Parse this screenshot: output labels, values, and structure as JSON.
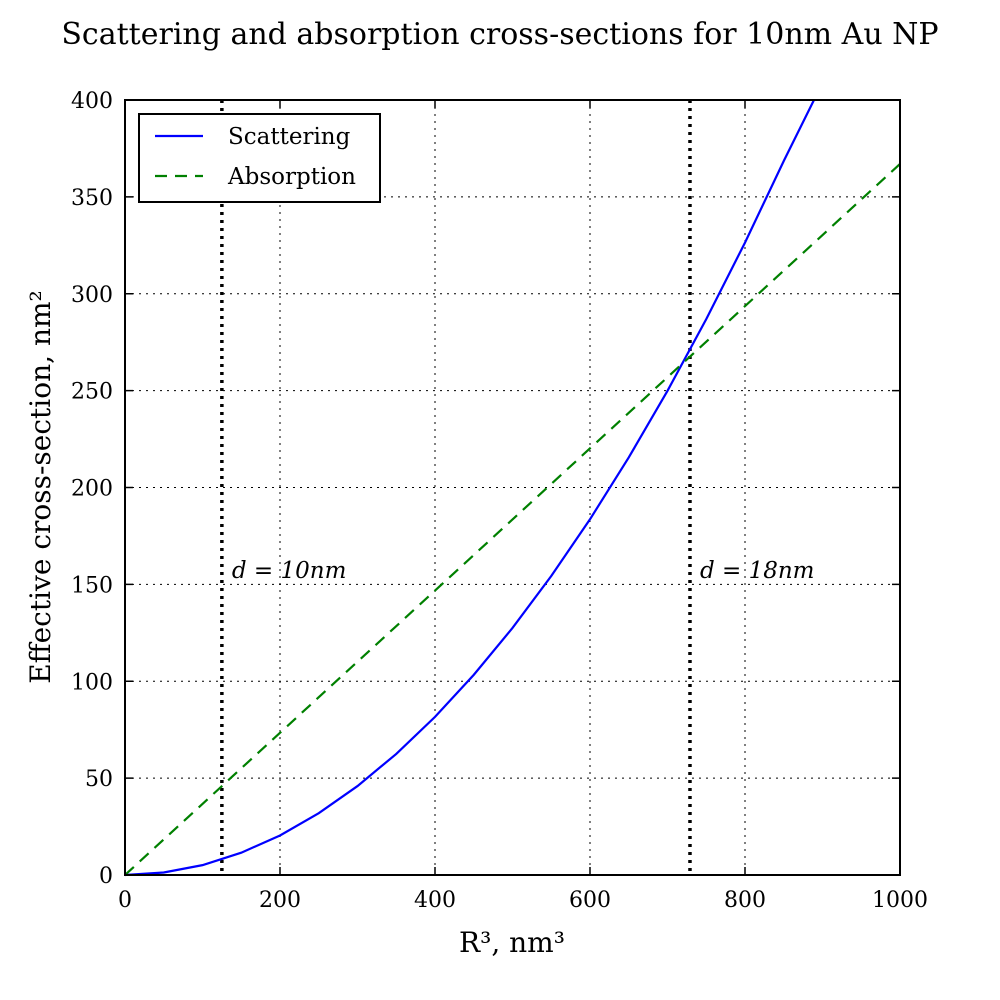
{
  "chart_data": {
    "type": "line",
    "title": "Scattering and absorption cross-sections for 10nm Au NP",
    "xlabel": "R³, nm³",
    "ylabel": "Effective cross-section, nm²",
    "xlim": [
      0,
      1000
    ],
    "ylim": [
      0,
      400
    ],
    "xticks": [
      0,
      200,
      400,
      600,
      800,
      1000
    ],
    "yticks": [
      0,
      50,
      100,
      150,
      200,
      250,
      300,
      350,
      400
    ],
    "grid": true,
    "legend_position": "top-left",
    "series": [
      {
        "name": "Scattering",
        "style": "solid",
        "color": "#0000ff",
        "x": [
          0,
          50,
          100,
          150,
          200,
          250,
          300,
          350,
          400,
          450,
          500,
          550,
          600,
          650,
          700,
          750,
          800,
          850,
          889
        ],
        "y": [
          0,
          1.3,
          5.1,
          11.5,
          20.4,
          31.9,
          45.9,
          62.5,
          81.6,
          103.3,
          127.5,
          154.3,
          183.6,
          215.5,
          249.9,
          286.9,
          326.4,
          368.5,
          400
        ]
      },
      {
        "name": "Absorption",
        "style": "dashed",
        "color": "#008000",
        "x": [
          0,
          1000
        ],
        "y": [
          0,
          367
        ]
      }
    ],
    "vlines": [
      {
        "x": 125,
        "label": "d = 10nm",
        "style": "dotted",
        "color": "#000000"
      },
      {
        "x": 729,
        "label": "d = 18nm",
        "style": "dotted",
        "color": "#000000"
      }
    ]
  }
}
